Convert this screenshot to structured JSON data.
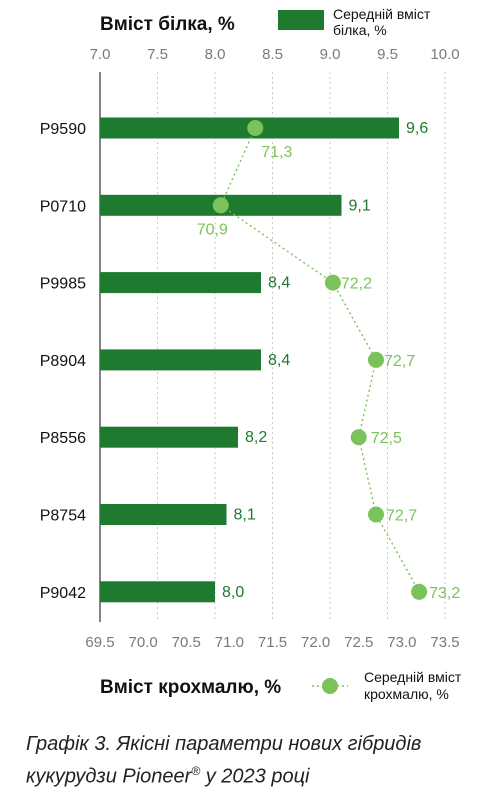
{
  "chart_data": {
    "type": "bar",
    "categories": [
      "P9590",
      "P0710",
      "P9985",
      "P8904",
      "P8556",
      "P8754",
      "P9042"
    ],
    "series": [
      {
        "name_lines": [
          "Середній вміст",
          "білка, %"
        ],
        "values": [
          9.6,
          9.1,
          8.4,
          8.4,
          8.2,
          8.1,
          8.0
        ],
        "labels": [
          "9,6",
          "9,1",
          "8,4",
          "8,4",
          "8,2",
          "8,1",
          "8,0"
        ],
        "color": "#1e7a2e",
        "axis": "top"
      },
      {
        "name_lines": [
          "Середній вміст",
          "крохмалю, %"
        ],
        "values": [
          71.3,
          70.9,
          72.2,
          72.7,
          72.5,
          72.7,
          73.2
        ],
        "labels": [
          "71,3",
          "70,9",
          "72,2",
          "72,7",
          "72,5",
          "72,7",
          "73,2"
        ],
        "color": "#7cc25a",
        "axis": "bottom",
        "style": "dotted-line-with-markers"
      }
    ],
    "top_axis": {
      "title": "Вміст білка, %",
      "range": [
        7.0,
        10.0
      ],
      "ticks": [
        "7.0",
        "7.5",
        "8.0",
        "8.5",
        "9.0",
        "9.5",
        "10.0"
      ]
    },
    "bottom_axis": {
      "title": "Вміст крохмалю, %",
      "range": [
        69.5,
        73.5
      ],
      "ticks": [
        "69.5",
        "70.0",
        "70.5",
        "71.0",
        "71.5",
        "72.0",
        "72.5",
        "73.0",
        "73.5"
      ]
    },
    "grid": "vertical-dashed"
  },
  "caption": {
    "line1": "Графік 3. Якісні параметри нових гібридів",
    "line2_pre": "кукурудзи Pioneer",
    "line2_sup": "®",
    "line2_post": " у 2023 році"
  }
}
